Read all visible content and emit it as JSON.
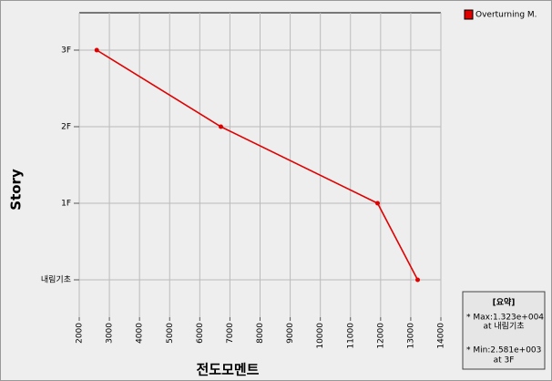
{
  "chart_data": {
    "type": "line",
    "x_label": "전도모멘트",
    "y_label": "Story",
    "categories": [
      "내림기초",
      "1F",
      "2F",
      "3F"
    ],
    "series": [
      {
        "name": "Overturning M.",
        "color": "#e00000",
        "values": [
          13230,
          11900,
          6700,
          2581
        ]
      }
    ],
    "xlim": [
      2000,
      14000
    ],
    "xticks": [
      2000,
      3000,
      4000,
      5000,
      6000,
      7000,
      8000,
      9000,
      10000,
      11000,
      12000,
      13000,
      14000
    ],
    "grid": true,
    "legend": "top-right",
    "annotations": [
      "[요약]",
      "* Max:1.323e+004",
      "at 내림기초",
      "* Min:2.581e+003",
      "at 3F"
    ]
  }
}
